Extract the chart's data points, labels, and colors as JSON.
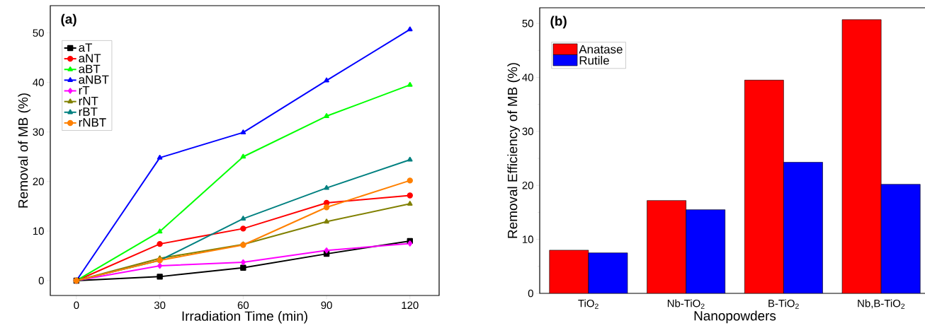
{
  "chart_data": [
    {
      "type": "line",
      "title": "(a)",
      "xlabel": "Irradiation Time (min)",
      "ylabel": "Removal of MB (%)",
      "x": [
        0,
        30,
        60,
        90,
        120
      ],
      "xlim": [
        -9.4,
        130.5
      ],
      "ylim": [
        -3,
        55.5
      ],
      "xticks": [
        0,
        30,
        60,
        90,
        120
      ],
      "yticks": [
        0,
        10,
        20,
        30,
        40,
        50
      ],
      "legend": "top left",
      "line_style": "solid",
      "series": [
        {
          "name": "aT",
          "color": "#000000",
          "marker": "square",
          "values": [
            0,
            0.8,
            2.6,
            5.4,
            8.0
          ]
        },
        {
          "name": "aNT",
          "color": "#ff0000",
          "marker": "circle",
          "values": [
            0,
            7.4,
            10.5,
            15.7,
            17.2
          ]
        },
        {
          "name": "aBT",
          "color": "#00ff00",
          "marker": "triangle",
          "values": [
            0,
            9.9,
            25.0,
            33.2,
            39.5
          ]
        },
        {
          "name": "aNBT",
          "color": "#0000ff",
          "marker": "triangle",
          "values": [
            0,
            24.8,
            29.9,
            40.4,
            50.7
          ]
        },
        {
          "name": "rT",
          "color": "#ff00ff",
          "marker": "diamond",
          "values": [
            0,
            3.0,
            3.7,
            6.1,
            7.5
          ]
        },
        {
          "name": "rNT",
          "color": "#808000",
          "marker": "triangle",
          "values": [
            0,
            4.5,
            7.3,
            11.9,
            15.5
          ]
        },
        {
          "name": "rBT",
          "color": "#008080",
          "marker": "triangle",
          "values": [
            0,
            4.1,
            12.5,
            18.7,
            24.4
          ]
        },
        {
          "name": "rNBT",
          "color": "#ff8000",
          "marker": "circle",
          "values": [
            0,
            4.1,
            7.2,
            14.8,
            20.2
          ]
        }
      ]
    },
    {
      "type": "bar",
      "title": "(b)",
      "xlabel": "Nanopowders",
      "ylabel": "Removal Efficiency of MB (%)",
      "categories": [
        "TiO$_{2}$",
        "Nb-TiO$_{2}$",
        "B-TiO$_{2}$",
        "Nb,B-TiO$_{2}$"
      ],
      "ylim": [
        0,
        52.9
      ],
      "yticks": [
        0,
        10,
        20,
        30,
        40,
        50
      ],
      "legend": "top left",
      "series": [
        {
          "name": "Anatase",
          "color": "#ff0000",
          "values": [
            8.0,
            17.2,
            39.5,
            50.7
          ]
        },
        {
          "name": "Rutile",
          "color": "#0000ff",
          "values": [
            7.5,
            15.5,
            24.3,
            20.2
          ]
        }
      ]
    }
  ]
}
